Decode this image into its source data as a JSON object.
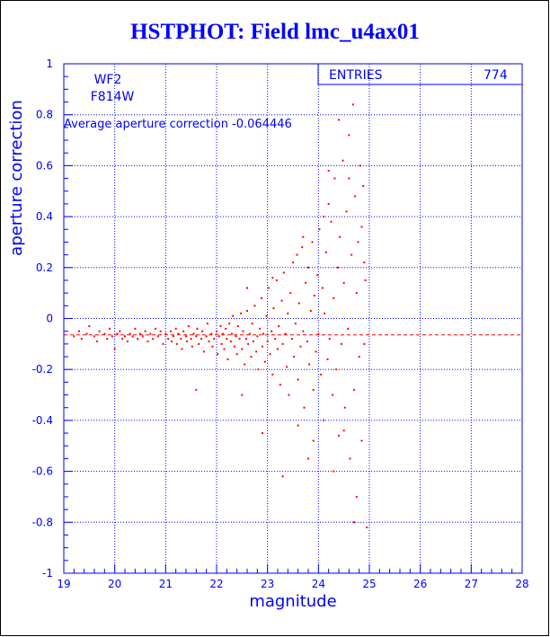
{
  "chart_data": {
    "type": "scatter",
    "title": "HSTPHOT: Field lmc_u4ax01",
    "xlabel": "magnitude",
    "ylabel": "aperture correction",
    "xlim": [
      19,
      28
    ],
    "ylim": [
      -1,
      1
    ],
    "x_ticks": [
      19,
      20,
      21,
      22,
      23,
      24,
      25,
      26,
      27,
      28
    ],
    "y_ticks": [
      -1,
      -0.8,
      -0.6,
      -0.4,
      -0.2,
      0,
      0.2,
      0.4,
      0.6,
      0.8,
      1
    ],
    "grid": true,
    "annotations": {
      "chip": "WF2",
      "filter": "F814W",
      "average_text": "Average aperture correction -0.064446",
      "entries_label": "ENTRIES",
      "entries_value": "774"
    },
    "average_line_y": -0.064446,
    "point_color": "#ff0000",
    "axis_color": "#0000ff",
    "points": [
      [
        19.2,
        -0.07
      ],
      [
        19.3,
        -0.05
      ],
      [
        19.35,
        -0.08
      ],
      [
        19.45,
        -0.06
      ],
      [
        19.5,
        -0.03
      ],
      [
        19.6,
        -0.07
      ],
      [
        19.65,
        -0.09
      ],
      [
        19.7,
        -0.05
      ],
      [
        19.8,
        -0.06
      ],
      [
        19.85,
        -0.08
      ],
      [
        19.9,
        -0.04
      ],
      [
        19.95,
        -0.07
      ],
      [
        20.0,
        -0.12
      ],
      [
        20.05,
        -0.06
      ],
      [
        20.1,
        -0.05
      ],
      [
        20.15,
        -0.08
      ],
      [
        20.2,
        -0.07
      ],
      [
        20.25,
        -0.09
      ],
      [
        20.3,
        -0.06
      ],
      [
        20.35,
        -0.07
      ],
      [
        20.4,
        -0.04
      ],
      [
        20.45,
        -0.08
      ],
      [
        20.5,
        -0.06
      ],
      [
        20.55,
        -0.07
      ],
      [
        20.6,
        -0.05
      ],
      [
        20.65,
        -0.09
      ],
      [
        20.7,
        -0.06
      ],
      [
        20.75,
        -0.08
      ],
      [
        20.8,
        -0.04
      ],
      [
        20.85,
        -0.07
      ],
      [
        20.9,
        -0.05
      ],
      [
        20.95,
        -0.1
      ],
      [
        21.0,
        -0.06
      ],
      [
        21.05,
        -0.08
      ],
      [
        21.1,
        -0.05
      ],
      [
        21.12,
        -0.09
      ],
      [
        21.15,
        -0.07
      ],
      [
        21.2,
        -0.04
      ],
      [
        21.22,
        -0.1
      ],
      [
        21.25,
        -0.06
      ],
      [
        21.3,
        -0.08
      ],
      [
        21.32,
        -0.12
      ],
      [
        21.35,
        -0.05
      ],
      [
        21.4,
        -0.07
      ],
      [
        21.42,
        -0.09
      ],
      [
        21.45,
        -0.03
      ],
      [
        21.5,
        -0.08
      ],
      [
        21.52,
        -0.11
      ],
      [
        21.55,
        -0.06
      ],
      [
        21.6,
        -0.07
      ],
      [
        21.62,
        -0.04
      ],
      [
        21.65,
        -0.1
      ],
      [
        21.7,
        -0.08
      ],
      [
        21.72,
        -0.05
      ],
      [
        21.75,
        -0.13
      ],
      [
        21.8,
        -0.07
      ],
      [
        21.82,
        -0.02
      ],
      [
        21.85,
        -0.09
      ],
      [
        21.9,
        -0.06
      ],
      [
        21.92,
        -0.11
      ],
      [
        21.95,
        -0.08
      ],
      [
        22.0,
        -0.05
      ],
      [
        22.02,
        -0.14
      ],
      [
        22.05,
        -0.07
      ],
      [
        22.08,
        -0.03
      ],
      [
        22.1,
        -0.1
      ],
      [
        22.12,
        -0.06
      ],
      [
        22.15,
        -0.12
      ],
      [
        22.18,
        -0.04
      ],
      [
        22.2,
        -0.08
      ],
      [
        22.22,
        -0.16
      ],
      [
        22.25,
        -0.02
      ],
      [
        22.28,
        -0.09
      ],
      [
        22.3,
        -0.06
      ],
      [
        22.32,
        0.01
      ],
      [
        22.35,
        -0.11
      ],
      [
        22.38,
        -0.07
      ],
      [
        22.4,
        -0.14
      ],
      [
        22.42,
        -0.03
      ],
      [
        22.45,
        -0.08
      ],
      [
        22.48,
        0.02
      ],
      [
        22.5,
        -0.12
      ],
      [
        22.52,
        -0.05
      ],
      [
        22.55,
        -0.18
      ],
      [
        22.58,
        -0.08
      ],
      [
        22.6,
        0.03
      ],
      [
        22.62,
        -0.1
      ],
      [
        22.65,
        -0.06
      ],
      [
        22.68,
        -0.15
      ],
      [
        22.7,
        -0.02
      ],
      [
        22.72,
        -0.09
      ],
      [
        22.75,
        0.05
      ],
      [
        22.78,
        -0.13
      ],
      [
        22.8,
        -0.07
      ],
      [
        22.82,
        -0.2
      ],
      [
        22.85,
        -0.04
      ],
      [
        22.88,
        0.08
      ],
      [
        22.9,
        -0.11
      ],
      [
        22.92,
        -0.06
      ],
      [
        22.95,
        -0.17
      ],
      [
        22.98,
        0.01
      ],
      [
        23.0,
        -0.09
      ],
      [
        23.02,
        0.12
      ],
      [
        23.05,
        -0.14
      ],
      [
        23.08,
        -0.05
      ],
      [
        23.1,
        -0.22
      ],
      [
        23.12,
        0.04
      ],
      [
        23.15,
        -0.08
      ],
      [
        23.18,
        0.15
      ],
      [
        23.2,
        -0.12
      ],
      [
        23.22,
        -0.03
      ],
      [
        23.25,
        -0.26
      ],
      [
        23.28,
        0.07
      ],
      [
        23.3,
        -0.1
      ],
      [
        23.32,
        0.18
      ],
      [
        23.35,
        -0.06
      ],
      [
        23.38,
        -0.19
      ],
      [
        23.4,
        0.02
      ],
      [
        23.42,
        -0.3
      ],
      [
        23.45,
        0.1
      ],
      [
        23.48,
        -0.08
      ],
      [
        23.5,
        0.22
      ],
      [
        23.52,
        -0.15
      ],
      [
        23.55,
        -0.02
      ],
      [
        23.58,
        0.25
      ],
      [
        23.6,
        -0.24
      ],
      [
        23.62,
        0.06
      ],
      [
        23.65,
        -0.11
      ],
      [
        23.68,
        0.28
      ],
      [
        23.7,
        -0.05
      ],
      [
        23.72,
        -0.35
      ],
      [
        23.75,
        0.14
      ],
      [
        23.78,
        -0.09
      ],
      [
        23.8,
        0.2
      ],
      [
        23.82,
        -0.18
      ],
      [
        23.85,
        0.03
      ],
      [
        23.88,
        0.3
      ],
      [
        23.9,
        -0.28
      ],
      [
        23.92,
        0.09
      ],
      [
        23.95,
        -0.13
      ],
      [
        23.98,
        0.17
      ],
      [
        24.0,
        -0.06
      ],
      [
        24.02,
        0.35
      ],
      [
        24.05,
        -0.22
      ],
      [
        24.08,
        0.12
      ],
      [
        24.1,
        -0.4
      ],
      [
        24.12,
        0.02
      ],
      [
        24.15,
        0.26
      ],
      [
        24.18,
        -0.16
      ],
      [
        24.2,
        0.45
      ],
      [
        24.22,
        -0.08
      ],
      [
        24.25,
        0.38
      ],
      [
        24.28,
        -0.3
      ],
      [
        24.3,
        0.08
      ],
      [
        24.32,
        0.55
      ],
      [
        24.35,
        -0.2
      ],
      [
        24.38,
        0.2
      ],
      [
        24.4,
        -0.46
      ],
      [
        24.42,
        0.32
      ],
      [
        24.45,
        -0.1
      ],
      [
        24.48,
        0.62
      ],
      [
        24.5,
        0.14
      ],
      [
        24.52,
        -0.35
      ],
      [
        24.55,
        0.42
      ],
      [
        24.58,
        -0.04
      ],
      [
        24.6,
        0.72
      ],
      [
        24.62,
        -0.55
      ],
      [
        24.65,
        0.25
      ],
      [
        24.68,
        0.84
      ],
      [
        24.7,
        -0.28
      ],
      [
        24.72,
        0.48
      ],
      [
        24.75,
        -0.7
      ],
      [
        24.78,
        0.3
      ],
      [
        24.8,
        -0.15
      ],
      [
        24.82,
        0.6
      ],
      [
        24.85,
        -0.48
      ],
      [
        24.88,
        0.52
      ],
      [
        24.9,
        -0.1
      ],
      [
        24.92,
        0.15
      ],
      [
        24.95,
        -0.82
      ],
      [
        24.6,
        0.55
      ],
      [
        24.4,
        0.78
      ],
      [
        24.3,
        -0.6
      ],
      [
        24.7,
        -0.8
      ],
      [
        24.1,
        0.4
      ],
      [
        23.9,
        -0.48
      ],
      [
        23.6,
        -0.42
      ],
      [
        22.9,
        -0.45
      ],
      [
        22.5,
        -0.3
      ],
      [
        21.6,
        -0.28
      ],
      [
        23.3,
        -0.62
      ],
      [
        22.6,
        0.12
      ],
      [
        23.1,
        0.16
      ],
      [
        23.7,
        0.32
      ],
      [
        23.8,
        -0.55
      ],
      [
        24.2,
        0.58
      ],
      [
        24.5,
        -0.44
      ],
      [
        24.85,
        0.36
      ],
      [
        24.9,
        0.22
      ],
      [
        24.75,
        0.1
      ]
    ]
  }
}
